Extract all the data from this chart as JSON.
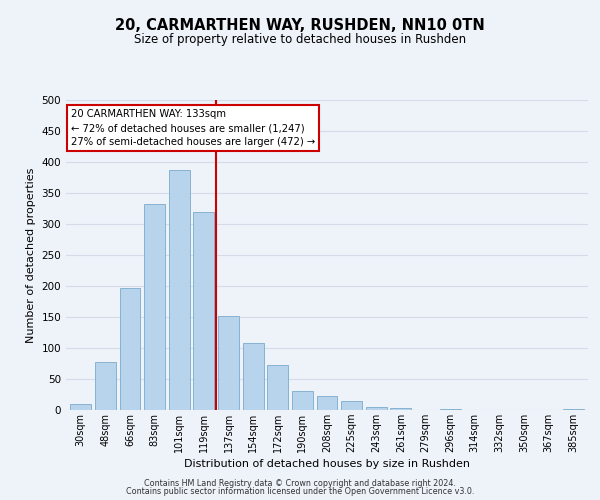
{
  "title": "20, CARMARTHEN WAY, RUSHDEN, NN10 0TN",
  "subtitle": "Size of property relative to detached houses in Rushden",
  "xlabel": "Distribution of detached houses by size in Rushden",
  "ylabel": "Number of detached properties",
  "bar_labels": [
    "30sqm",
    "48sqm",
    "66sqm",
    "83sqm",
    "101sqm",
    "119sqm",
    "137sqm",
    "154sqm",
    "172sqm",
    "190sqm",
    "208sqm",
    "225sqm",
    "243sqm",
    "261sqm",
    "279sqm",
    "296sqm",
    "314sqm",
    "332sqm",
    "350sqm",
    "367sqm",
    "385sqm"
  ],
  "bar_values": [
    10,
    78,
    197,
    332,
    387,
    320,
    152,
    108,
    73,
    30,
    22,
    14,
    5,
    3,
    0,
    1,
    0,
    0,
    0,
    0,
    1
  ],
  "bar_color": "#b8d4ec",
  "bar_edge_color": "#7aaace",
  "vline_color": "#cc0000",
  "vline_x": 5.5,
  "annotation_title": "20 CARMARTHEN WAY: 133sqm",
  "annotation_line1": "← 72% of detached houses are smaller (1,247)",
  "annotation_line2": "27% of semi-detached houses are larger (472) →",
  "annotation_box_color": "#ffffff",
  "annotation_box_edge": "#cc0000",
  "ylim": [
    0,
    500
  ],
  "yticks": [
    0,
    50,
    100,
    150,
    200,
    250,
    300,
    350,
    400,
    450,
    500
  ],
  "footer1": "Contains HM Land Registry data © Crown copyright and database right 2024.",
  "footer2": "Contains public sector information licensed under the Open Government Licence v3.0.",
  "bg_color": "#eef3fa",
  "grid_color": "#d4dce8"
}
